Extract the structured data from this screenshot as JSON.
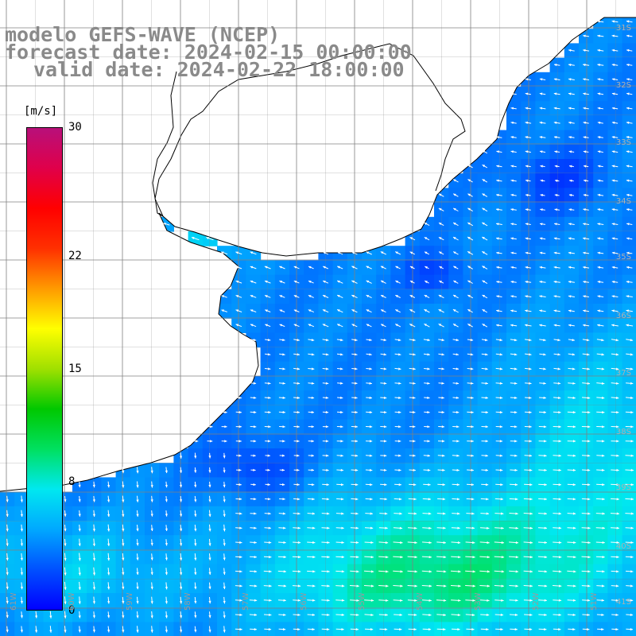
{
  "title": {
    "line1": "modelo GEFS-WAVE (NCEP)",
    "line2": "forecast date: 2024-02-15 00:00:00",
    "line3": "valid date: 2024-02-22 18:00:00"
  },
  "colorbar": {
    "unit": "[m/s]",
    "min": 0,
    "max": 30,
    "ticks": [
      {
        "label": "30",
        "value": 30
      },
      {
        "label": "22",
        "value": 22
      },
      {
        "label": "15",
        "value": 15
      },
      {
        "label": "8",
        "value": 8
      },
      {
        "label": "0",
        "value": 0
      }
    ],
    "stops": [
      "#0000ff",
      "#0050ff",
      "#00a8ff",
      "#00e8f0",
      "#00e060",
      "#00c800",
      "#a0e000",
      "#ffff00",
      "#ff9a00",
      "#ff3000",
      "#ff0000",
      "#e0004a",
      "#b8107a"
    ]
  },
  "lat_labels": [
    "31S",
    "32S",
    "33S",
    "34S",
    "35S",
    "36S",
    "37S",
    "38S",
    "39S",
    "40S",
    "41S"
  ],
  "lon_labels": [
    "61W",
    "60W",
    "59W",
    "58W",
    "57W",
    "56W",
    "55W",
    "54W",
    "53W",
    "52W",
    "51W"
  ],
  "map_colors": {
    "land": "#ffffff",
    "coast": "#000000",
    "grid": "#808080",
    "arrow": "#ffffff"
  }
}
